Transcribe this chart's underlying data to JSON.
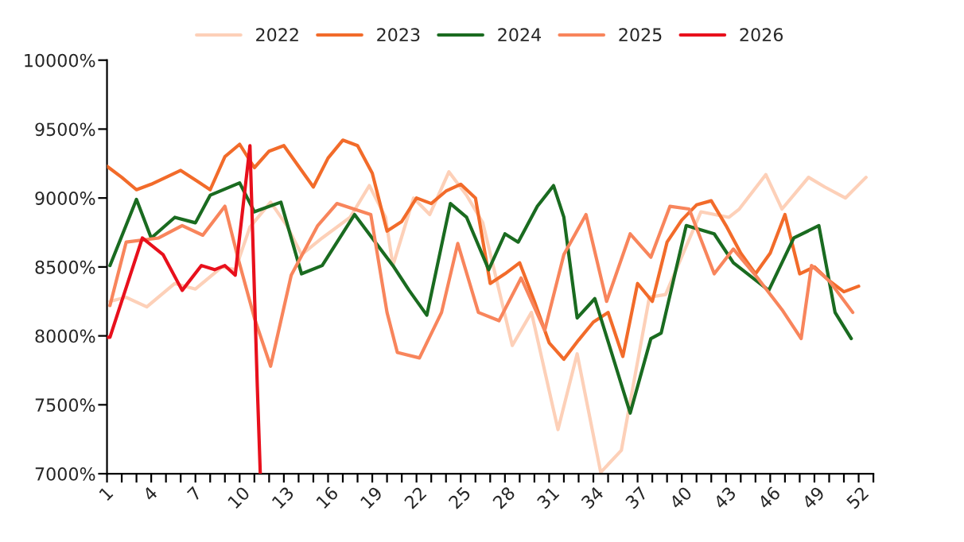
{
  "chart_data": {
    "type": "line",
    "xlim": [
      1,
      53
    ],
    "xticks": [
      1,
      {
        "value": 2,
        "label": null
      },
      {
        "value": 3,
        "label": null
      },
      4,
      {
        "value": 5,
        "label": null
      },
      {
        "value": 6,
        "label": null
      },
      7,
      {
        "value": 8,
        "label": null
      },
      {
        "value": 9,
        "label": null
      },
      10,
      {
        "value": 11,
        "label": null
      },
      {
        "value": 12,
        "label": null
      },
      13,
      {
        "value": 14,
        "label": null
      },
      {
        "value": 15,
        "label": null
      },
      16,
      {
        "value": 17,
        "label": null
      },
      {
        "value": 18,
        "label": null
      },
      19,
      {
        "value": 20,
        "label": null
      },
      {
        "value": 21,
        "label": null
      },
      22,
      {
        "value": 23,
        "label": null
      },
      {
        "value": 24,
        "label": null
      },
      25,
      {
        "value": 26,
        "label": null
      },
      {
        "value": 27,
        "label": null
      },
      28,
      {
        "value": 29,
        "label": null
      },
      {
        "value": 30,
        "label": null
      },
      31,
      {
        "value": 32,
        "label": null
      },
      {
        "value": 33,
        "label": null
      },
      34,
      {
        "value": 35,
        "label": null
      },
      {
        "value": 36,
        "label": null
      },
      37,
      {
        "value": 38,
        "label": null
      },
      {
        "value": 39,
        "label": null
      },
      40,
      {
        "value": 41,
        "label": null
      },
      {
        "value": 42,
        "label": null
      },
      43,
      {
        "value": 44,
        "label": null
      },
      {
        "value": 45,
        "label": null
      },
      46,
      {
        "value": 47,
        "label": null
      },
      {
        "value": 48,
        "label": null
      },
      49,
      {
        "value": 50,
        "label": null
      },
      {
        "value": 51,
        "label": null
      },
      52,
      {
        "value": 53,
        "label": null
      }
    ],
    "ylim": [
      7000,
      10000
    ],
    "yticks": [
      {
        "value": 7000,
        "label": "7000%"
      },
      {
        "value": 7500,
        "label": "7500%"
      },
      {
        "value": 8000,
        "label": "8000%"
      },
      {
        "value": 8500,
        "label": "8500%"
      },
      {
        "value": 9000,
        "label": "9000%"
      },
      {
        "value": 9500,
        "label": "9500%"
      },
      {
        "value": 10000,
        "label": "10000%"
      }
    ],
    "grid": false,
    "legend": "top",
    "marker": "none",
    "line_style": "solid",
    "series": [
      {
        "name": "2022",
        "color": "#fdd0b8",
        "x": [
          1.2,
          2.3,
          3.7,
          5.6,
          7,
          8.8,
          9.7,
          10.7,
          12.1,
          13.2,
          14.2,
          15.6,
          17.5,
          18.8,
          19.9,
          20.4,
          21.8,
          22.9,
          24.2,
          25.4,
          26.5,
          27.2,
          28.5,
          29.8,
          31.6,
          32.9,
          34.5,
          35.9,
          37.8,
          38.9,
          41.3,
          43.2,
          43.9,
          45.7,
          46.8,
          48.6,
          49.7,
          51.1,
          52.5
        ],
        "values": [
          8250,
          8280,
          8210,
          8380,
          8340,
          8500,
          8480,
          8790,
          8970,
          8800,
          8590,
          8710,
          8860,
          9090,
          8860,
          8510,
          9000,
          8880,
          9190,
          9020,
          8820,
          8510,
          7930,
          8170,
          7320,
          7870,
          7010,
          7170,
          8280,
          8300,
          8900,
          8860,
          8920,
          9170,
          8920,
          9150,
          9080,
          9000,
          9150
        ]
      },
      {
        "name": "2023",
        "color": "#f26b2a",
        "x": [
          1,
          2,
          3,
          4,
          5,
          6,
          7,
          8,
          9,
          10,
          11,
          12,
          13,
          14,
          15,
          16,
          17,
          18,
          19,
          20,
          21,
          22,
          23,
          24,
          25,
          26,
          27,
          28,
          29,
          30,
          31,
          32,
          33,
          34,
          35,
          36,
          37,
          38,
          39,
          40,
          41,
          42,
          43,
          44,
          45,
          46,
          47,
          48,
          49,
          50,
          51,
          52
        ],
        "values": [
          9230,
          9150,
          9060,
          9100,
          9150,
          9200,
          9130,
          9060,
          9300,
          9390,
          9220,
          9340,
          9380,
          9230,
          9080,
          9290,
          9420,
          9380,
          9180,
          8760,
          8830,
          9000,
          8960,
          9050,
          9100,
          9000,
          8380,
          8450,
          8530,
          8250,
          7950,
          7830,
          7970,
          8100,
          8170,
          7850,
          8380,
          8250,
          8680,
          8840,
          8950,
          8980,
          8800,
          8600,
          8450,
          8600,
          8880,
          8450,
          8500,
          8400,
          8320,
          8360
        ]
      },
      {
        "name": "2024",
        "color": "#1a6b20",
        "x": [
          1.2,
          3,
          4,
          5.6,
          7,
          8,
          10,
          11,
          12.8,
          14.2,
          15.6,
          17.8,
          20.4,
          21.5,
          22.7,
          24.3,
          25.4,
          26.9,
          28,
          28.9,
          30.2,
          31.3,
          32,
          32.9,
          34.1,
          36.5,
          37.9,
          38.6,
          40.3,
          42.2,
          43.5,
          45.9,
          47.6,
          49.3,
          50.4,
          51.5
        ],
        "values": [
          8510,
          8990,
          8710,
          8860,
          8820,
          9020,
          9110,
          8900,
          8970,
          8450,
          8510,
          8880,
          8510,
          8330,
          8150,
          8960,
          8860,
          8480,
          8740,
          8680,
          8940,
          9090,
          8860,
          8130,
          8270,
          7440,
          7980,
          8020,
          8800,
          8740,
          8530,
          8330,
          8710,
          8800,
          8170,
          7980
        ]
      },
      {
        "name": "2025",
        "color": "#f8855c",
        "x": [
          1.2,
          2.3,
          4.5,
          6.1,
          7.5,
          9,
          9.9,
          11,
          12.1,
          13.5,
          15.3,
          16.6,
          18.9,
          20,
          20.7,
          22.2,
          23.7,
          24.8,
          26.2,
          27.6,
          29.1,
          30.7,
          32,
          33.5,
          34.9,
          36.5,
          37.9,
          39.2,
          40.5,
          42.2,
          43.5,
          45,
          46.8,
          48.1,
          48.8,
          50,
          51.6
        ],
        "values": [
          8220,
          8680,
          8710,
          8800,
          8730,
          8940,
          8560,
          8130,
          7780,
          8440,
          8800,
          8960,
          8880,
          8170,
          7880,
          7840,
          8170,
          8670,
          8170,
          8110,
          8420,
          8040,
          8590,
          8880,
          8250,
          8740,
          8570,
          8940,
          8920,
          8450,
          8630,
          8440,
          8190,
          7980,
          8510,
          8400,
          8170
        ]
      },
      {
        "name": "2026",
        "color": "#e8101c",
        "x": [
          1,
          1.2,
          3.4,
          4.8,
          6.1,
          7.4,
          8.3,
          9,
          9.7,
          10.7,
          11.2,
          11.4
        ],
        "values": [
          7990,
          7990,
          8710,
          8590,
          8330,
          8510,
          8480,
          8510,
          8440,
          9380,
          7630,
          7000
        ]
      }
    ]
  }
}
